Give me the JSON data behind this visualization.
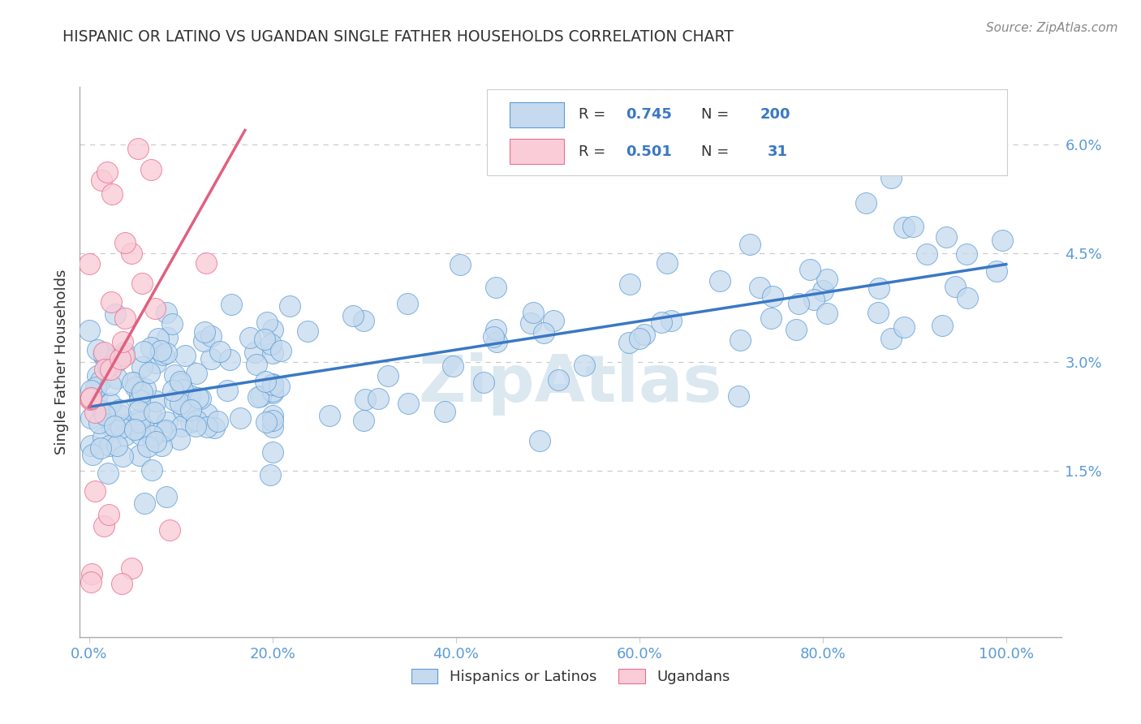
{
  "title": "HISPANIC OR LATINO VS UGANDAN SINGLE FATHER HOUSEHOLDS CORRELATION CHART",
  "source_text": "Source: ZipAtlas.com",
  "ylabel": "Single Father Households",
  "x_ticks_labels": [
    "0.0%",
    "20.0%",
    "40.0%",
    "60.0%",
    "80.0%",
    "100.0%"
  ],
  "x_tick_vals": [
    0,
    20,
    40,
    60,
    80,
    100
  ],
  "y_ticks_labels": [
    "1.5%",
    "3.0%",
    "4.5%",
    "6.0%"
  ],
  "y_tick_vals": [
    1.5,
    3.0,
    4.5,
    6.0
  ],
  "xlim": [
    -1,
    106
  ],
  "ylim": [
    -0.8,
    6.8
  ],
  "watermark": "ZipAtlas",
  "legend_entries": [
    {
      "label": "Hispanics or Latinos",
      "color": "#c5daee",
      "edge": "#5b9bd5",
      "R": "0.745",
      "N": "200"
    },
    {
      "label": "Ugandans",
      "color": "#f9ccd8",
      "edge": "#e87090",
      "R": "0.501",
      "N": "31"
    }
  ],
  "blue_line_x": [
    0,
    100
  ],
  "blue_line_y": [
    2.38,
    4.35
  ],
  "pink_line_x": [
    0,
    17
  ],
  "pink_line_y": [
    2.38,
    6.2
  ],
  "grid_color": "#cccccc",
  "blue_line_color": "#3a78c4",
  "pink_line_color": "#e06080",
  "title_color": "#333333",
  "ylabel_color": "#333333",
  "tick_color": "#5b9bd5",
  "source_color": "#888888",
  "watermark_color": "#dce8f0",
  "background_color": "#ffffff"
}
